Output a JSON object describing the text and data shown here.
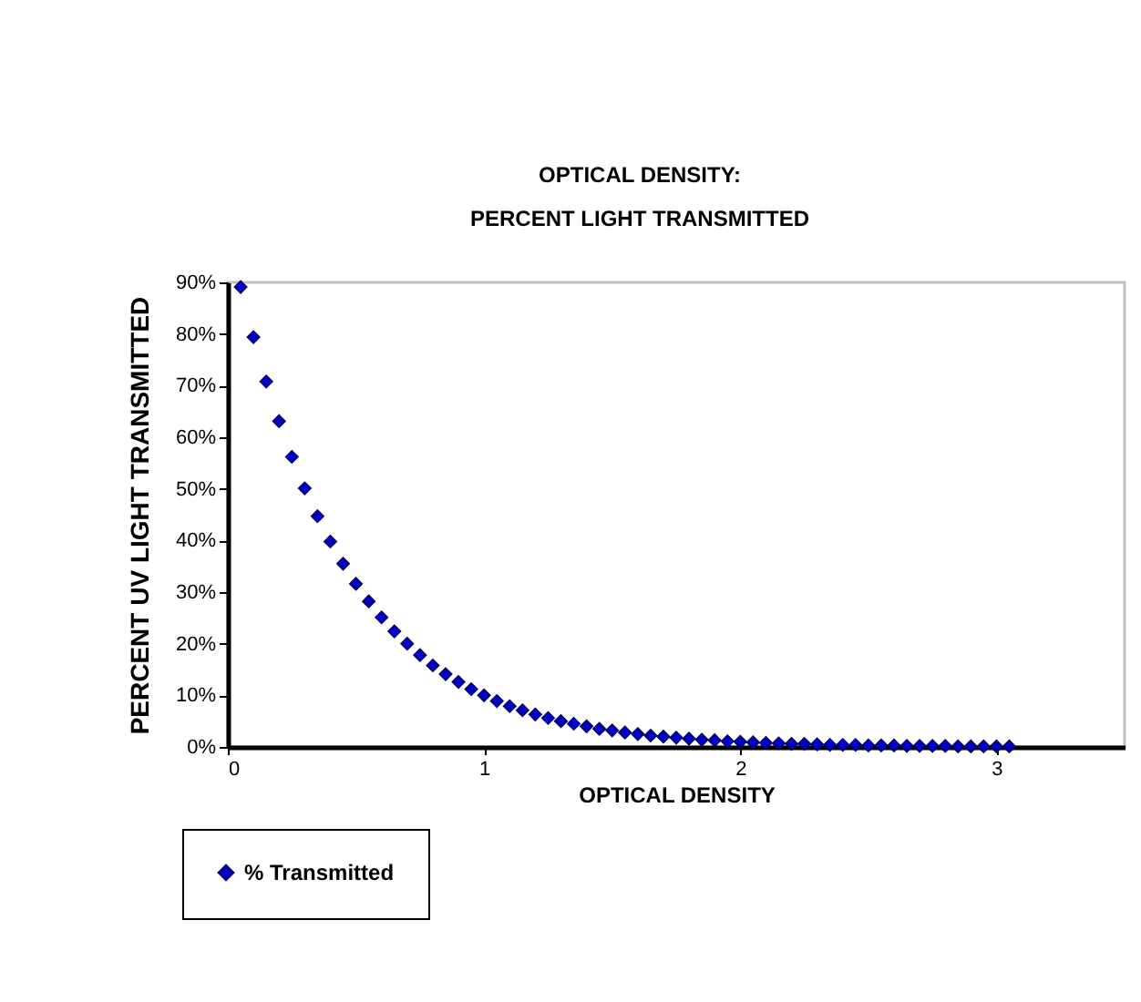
{
  "chart_data": {
    "type": "scatter",
    "title": "OPTICAL DENSITY:",
    "subtitle": "PERCENT LIGHT TRANSMITTED",
    "xlabel": "OPTICAL DENSITY",
    "ylabel": "PERCENT UV LIGHT TRANSMITTED",
    "xlim": [
      0,
      3.5
    ],
    "xticks": [
      0,
      1,
      2,
      3
    ],
    "ylim": [
      0,
      90
    ],
    "yticks": [
      {
        "value": 0,
        "label": "0%"
      },
      {
        "value": 10,
        "label": "10%"
      },
      {
        "value": 20,
        "label": "20%"
      },
      {
        "value": 30,
        "label": "30%"
      },
      {
        "value": 40,
        "label": "40%"
      },
      {
        "value": 50,
        "label": "50%"
      },
      {
        "value": 60,
        "label": "60%"
      },
      {
        "value": 70,
        "label": "70%"
      },
      {
        "value": 80,
        "label": "80%"
      },
      {
        "value": 90,
        "label": "90%"
      }
    ],
    "grid": false,
    "legend": "bottom left",
    "marker": "diamond",
    "x": [
      0.05,
      0.1,
      0.15,
      0.2,
      0.25,
      0.3,
      0.35,
      0.4,
      0.45,
      0.5,
      0.55,
      0.6,
      0.65,
      0.7,
      0.75,
      0.8,
      0.85,
      0.9,
      0.95,
      1.0,
      1.05,
      1.1,
      1.15,
      1.2,
      1.25,
      1.3,
      1.35,
      1.4,
      1.45,
      1.5,
      1.55,
      1.6,
      1.65,
      1.7,
      1.75,
      1.8,
      1.85,
      1.9,
      1.95,
      2.0,
      2.05,
      2.1,
      2.15,
      2.2,
      2.25,
      2.3,
      2.35,
      2.4,
      2.45,
      2.5,
      2.55,
      2.6,
      2.65,
      2.7,
      2.75,
      2.8,
      2.85,
      2.9,
      2.95,
      3.0,
      3.05
    ],
    "series": [
      {
        "name": "% Transmitted",
        "color": "#0000cc",
        "values": [
          89.1,
          79.4,
          70.8,
          63.1,
          56.2,
          50.1,
          44.7,
          39.8,
          35.5,
          31.6,
          28.2,
          25.1,
          22.4,
          20.0,
          17.8,
          15.8,
          14.1,
          12.6,
          11.2,
          10.0,
          8.9,
          7.9,
          7.1,
          6.3,
          5.6,
          5.0,
          4.5,
          4.0,
          3.5,
          3.2,
          2.8,
          2.5,
          2.2,
          2.0,
          1.8,
          1.6,
          1.4,
          1.3,
          1.1,
          1.0,
          0.9,
          0.8,
          0.7,
          0.6,
          0.6,
          0.5,
          0.4,
          0.4,
          0.4,
          0.3,
          0.3,
          0.3,
          0.2,
          0.2,
          0.2,
          0.2,
          0.1,
          0.1,
          0.1,
          0.1,
          0.1
        ]
      }
    ]
  }
}
